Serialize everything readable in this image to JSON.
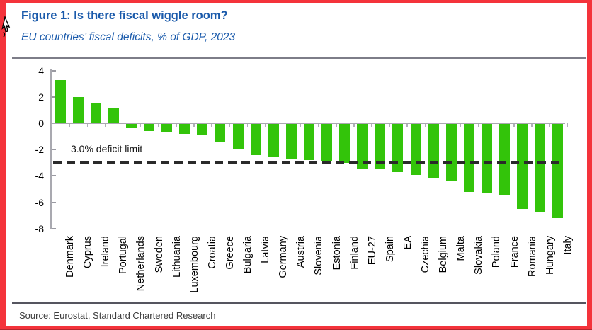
{
  "figure": {
    "title": "Figure 1: Is there fiscal wiggle room?",
    "subtitle": "EU countries’ fiscal deficits, % of GDP, 2023",
    "source": "Source: Eurostat, Standard Chartered Research"
  },
  "colors": {
    "title_blue": "#1a5aab",
    "bar_green": "#33c40a",
    "frame_red": "#f4333b",
    "dashed_line": "#2a2a2a",
    "axis_gray": "#a9a9b0"
  },
  "chart_data": {
    "type": "bar",
    "title": "Figure 1: Is there fiscal wiggle room?",
    "subtitle": "EU countries’ fiscal deficits, % of GDP, 2023",
    "xlabel": "",
    "ylabel": "% of GDP",
    "ylim": [
      -8,
      4
    ],
    "yticks": [
      4,
      2,
      0,
      -2,
      -4,
      -6,
      -8
    ],
    "grid": false,
    "legend": "none",
    "bar_color": "#33c40a",
    "categories": [
      "Denmark",
      "Cyprus",
      "Ireland",
      "Portugal",
      "Netherlands",
      "Sweden",
      "Lithuania",
      "Luxembourg",
      "Croatia",
      "Greece",
      "Bulgaria",
      "Latvia",
      "Germany",
      "Austria",
      "Slovenia",
      "Estonia",
      "Finland",
      "EU-27",
      "Spain",
      "EA",
      "Czechia",
      "Belgium",
      "Malta",
      "Slovakia",
      "Poland",
      "France",
      "Romania",
      "Hungary",
      "Italy"
    ],
    "values": [
      3.3,
      2.0,
      1.5,
      1.2,
      -0.4,
      -0.6,
      -0.7,
      -0.8,
      -0.9,
      -1.4,
      -2.0,
      -2.4,
      -2.5,
      -2.7,
      -2.8,
      -2.9,
      -3.0,
      -3.5,
      -3.5,
      -3.7,
      -3.9,
      -4.2,
      -4.4,
      -5.2,
      -5.3,
      -5.5,
      -6.5,
      -6.7,
      -7.2
    ],
    "reference_line": {
      "value": -3.0,
      "label": "3.0% deficit limit"
    }
  }
}
